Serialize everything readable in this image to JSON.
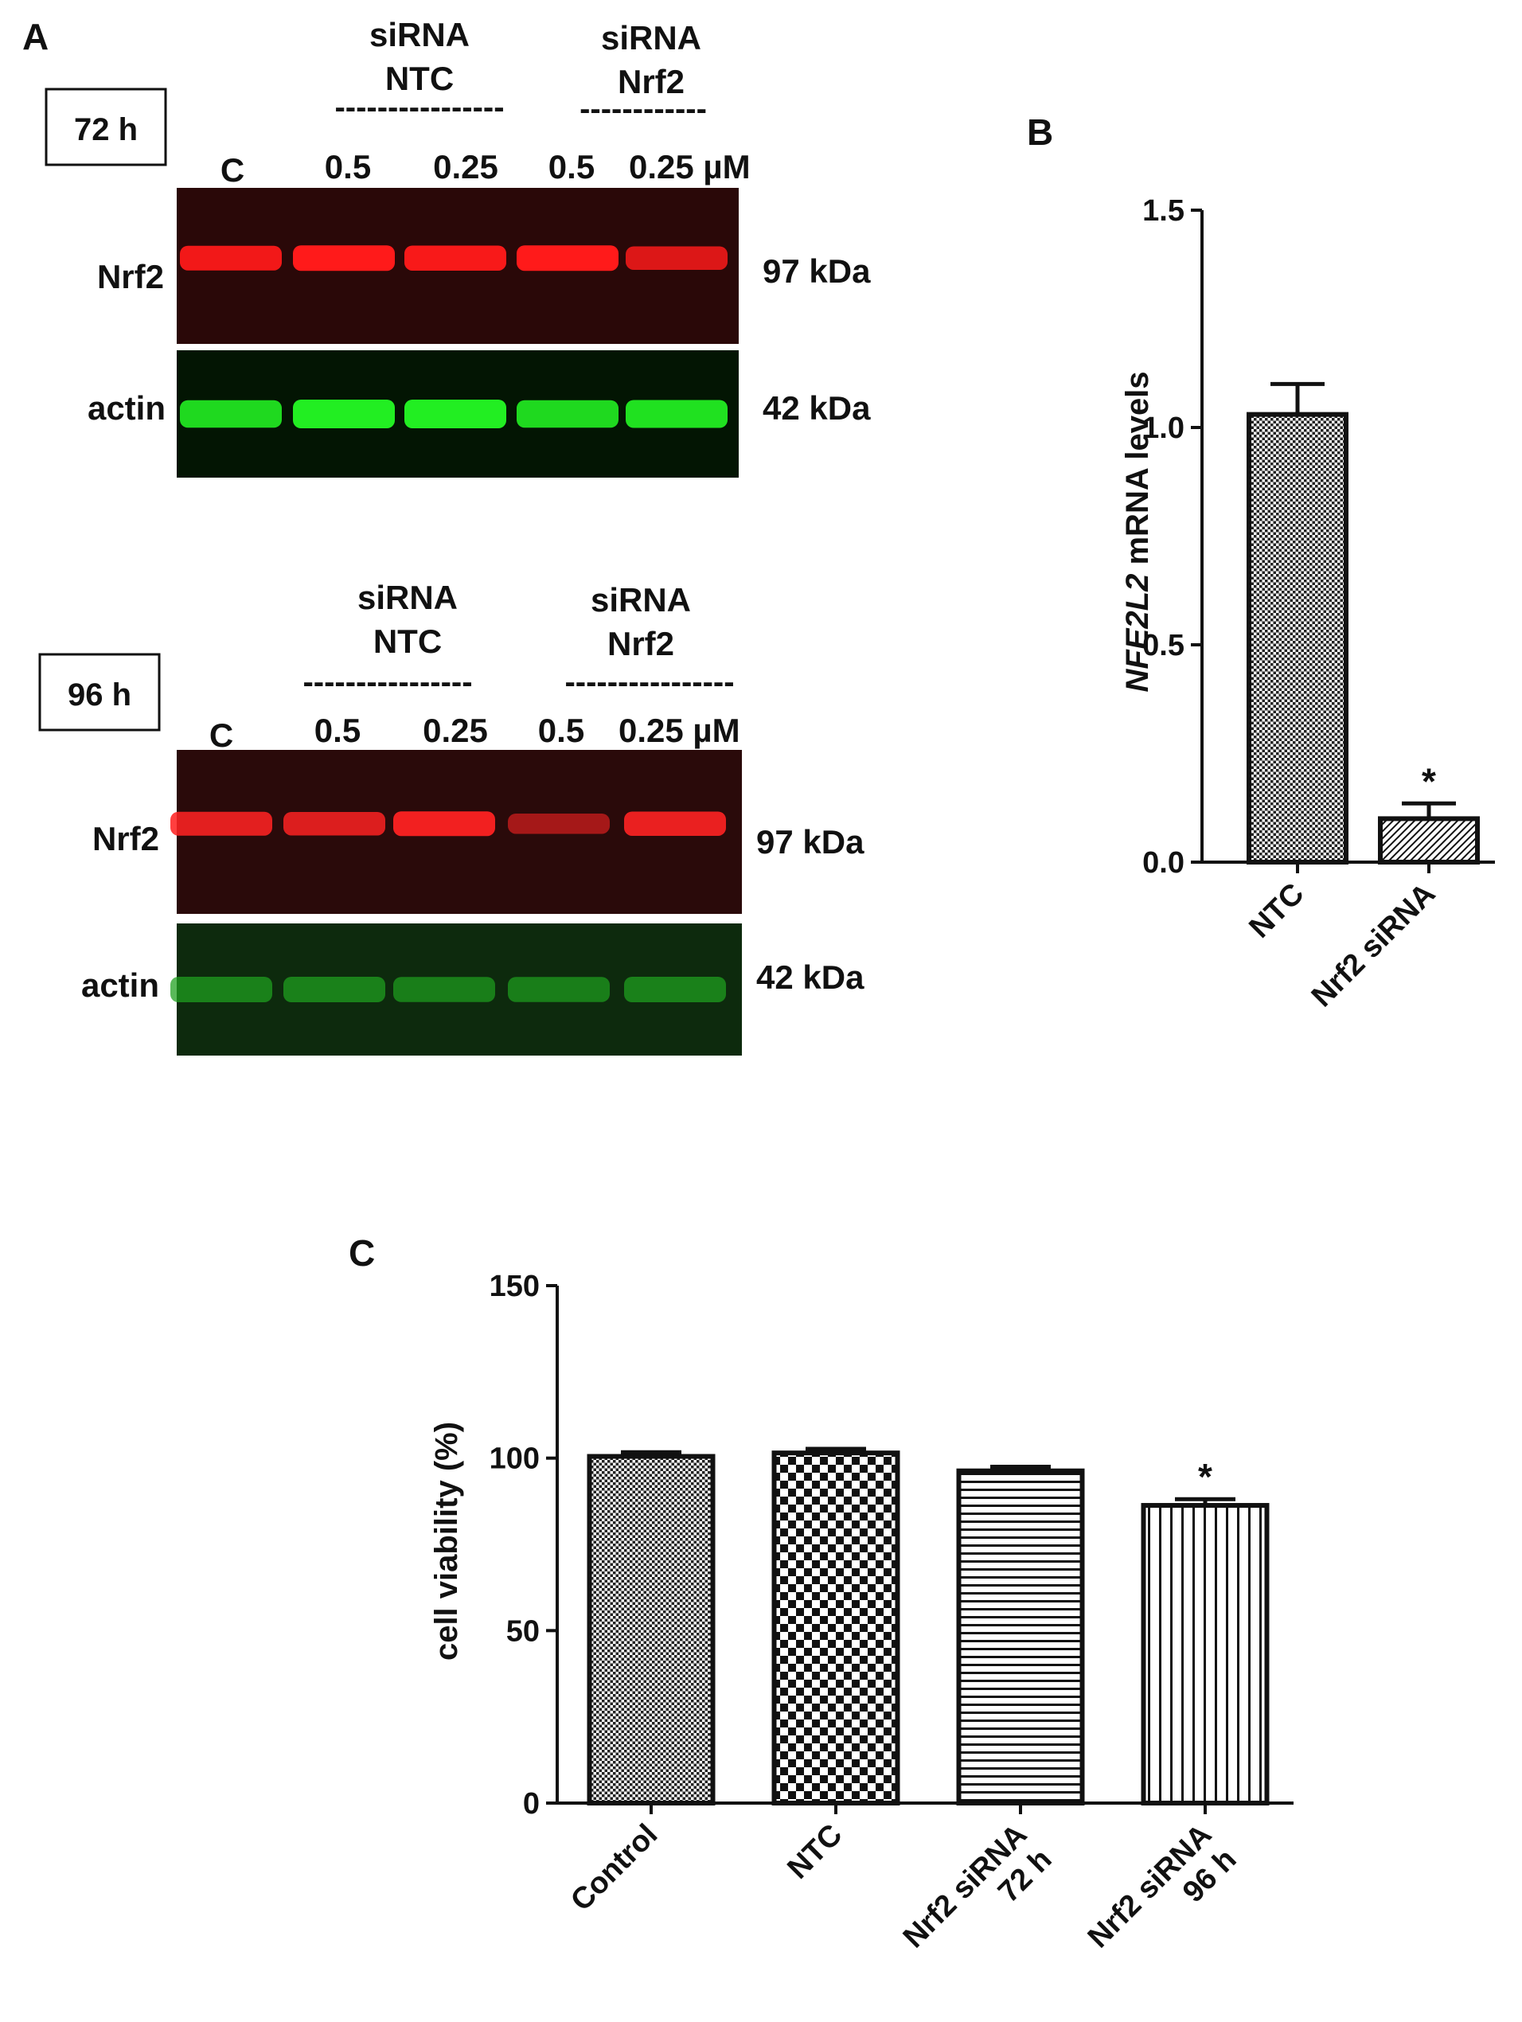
{
  "panel_a": {
    "label": "A",
    "blots": [
      {
        "time_label": "72 h",
        "group_ntc": [
          "siRNA",
          "NTC"
        ],
        "group_nrf2": [
          "siRNA",
          "Nrf2"
        ],
        "dashes_ntc": "----------------",
        "dashes_nrf2": "------------",
        "lanes": [
          "C",
          "0.5",
          "0.25",
          "0.5",
          "0.25 µM"
        ],
        "rows": [
          {
            "protein": "Nrf2",
            "size": "97 kDa",
            "color": "#ff1a1a",
            "background": "#2a0808",
            "intensity": [
              0.9,
              1.0,
              0.95,
              1.0,
              0.75
            ]
          },
          {
            "protein": "actin",
            "size": "42 kDa",
            "color": "#22ee22",
            "background": "#031503",
            "intensity": [
              0.85,
              1.0,
              1.0,
              0.85,
              0.9
            ]
          }
        ]
      },
      {
        "time_label": "96 h",
        "group_ntc": [
          "siRNA",
          "NTC"
        ],
        "group_nrf2": [
          "siRNA",
          "Nrf2"
        ],
        "dashes_ntc": "----------------",
        "dashes_nrf2": "----------------",
        "lanes": [
          "C",
          "0.5",
          "0.25",
          "0.5",
          "0.25 µM"
        ],
        "rows": [
          {
            "protein": "Nrf2",
            "size": "97 kDa",
            "color": "#ff2222",
            "background": "#2a0a0a",
            "intensity": [
              0.8,
              0.75,
              0.9,
              0.35,
              0.85
            ]
          },
          {
            "protein": "actin",
            "size": "42 kDa",
            "color": "#1fa01f",
            "background": "#0d2a0d",
            "intensity": [
              0.6,
              0.6,
              0.55,
              0.55,
              0.6
            ]
          }
        ]
      }
    ]
  },
  "chart_data": [
    {
      "panel": "B",
      "type": "bar",
      "categories": [
        "NTC",
        "Nrf2 siRNA"
      ],
      "values": [
        1.03,
        0.1
      ],
      "errors": [
        0.07,
        0.035
      ],
      "significance": [
        "",
        "*"
      ],
      "patterns": [
        "dots",
        "diagonal"
      ],
      "ylabel_italic": "NFE2L2",
      "ylabel_rest": " mRNA levels",
      "ylim": [
        0,
        1.5
      ],
      "yticks": [
        "0.0",
        "0.5",
        "1.0",
        "1.5"
      ],
      "grid": false
    },
    {
      "panel": "C",
      "type": "bar",
      "categories": [
        [
          "Control"
        ],
        [
          "NTC"
        ],
        [
          "Nrf2 siRNA",
          "72 h"
        ],
        [
          "Nrf2 siRNA",
          "96 h"
        ]
      ],
      "values": [
        100.5,
        101.5,
        96.3,
        86.3
      ],
      "errors": [
        1.2,
        1.2,
        1.2,
        1.8
      ],
      "significance": [
        "",
        "",
        "",
        "*"
      ],
      "patterns": [
        "dots",
        "checker",
        "hstripes",
        "vstripes"
      ],
      "ylabel": "cell viability (%)",
      "ylim": [
        0,
        150
      ],
      "yticks": [
        "0",
        "50",
        "100",
        "150"
      ],
      "grid": false
    }
  ]
}
